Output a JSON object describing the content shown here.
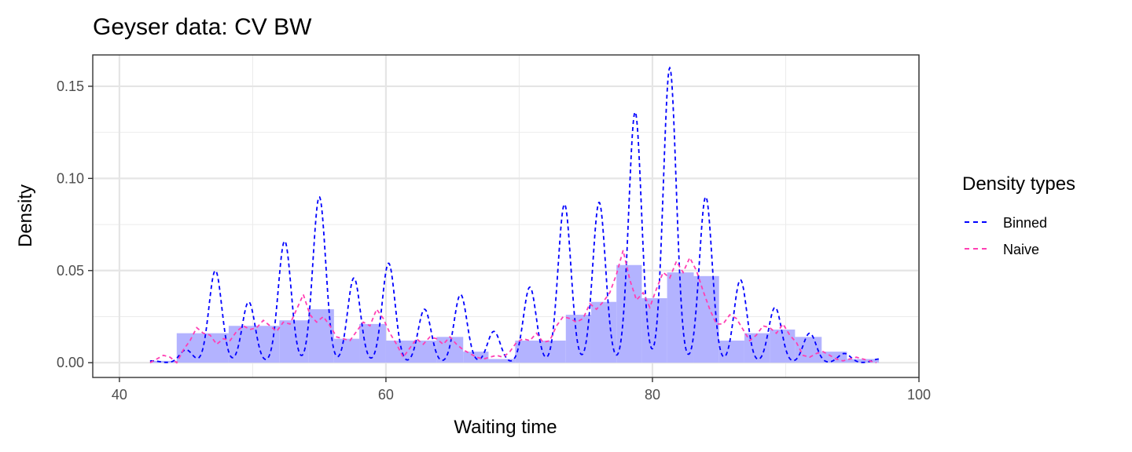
{
  "chart_data": {
    "type": "line",
    "title": "Geyser data: CV BW",
    "xlabel": "Waiting time",
    "ylabel": "Density",
    "xlim": [
      38,
      100
    ],
    "ylim": [
      -0.008,
      0.167
    ],
    "x_ticks": [
      40,
      60,
      80,
      100
    ],
    "x_tick_labels": [
      "40",
      "60",
      "80",
      "100"
    ],
    "y_ticks": [
      0,
      0.05,
      0.1,
      0.15
    ],
    "y_tick_labels": [
      "0.00",
      "0.05",
      "0.10",
      "0.15"
    ],
    "grid": true,
    "legend_position": "right",
    "legend": {
      "title": "Density types",
      "entries": [
        {
          "label": "Binned",
          "color": "#0000ff",
          "dash": "dashed"
        },
        {
          "label": "Naive",
          "color": "#ff3fb4",
          "dash": "dashed"
        }
      ]
    },
    "histogram": {
      "fill": "#b3b3ff",
      "bins": [
        {
          "x0": 42.3,
          "x1": 44.3,
          "y": 0.001
        },
        {
          "x0": 44.3,
          "x1": 48.2,
          "y": 0.016
        },
        {
          "x0": 48.2,
          "x1": 52.0,
          "y": 0.02
        },
        {
          "x0": 52.0,
          "x1": 54.2,
          "y": 0.023
        },
        {
          "x0": 54.2,
          "x1": 56.1,
          "y": 0.029
        },
        {
          "x0": 56.1,
          "x1": 58.0,
          "y": 0.013
        },
        {
          "x0": 58.0,
          "x1": 60.0,
          "y": 0.021
        },
        {
          "x0": 60.0,
          "x1": 63.8,
          "y": 0.012
        },
        {
          "x0": 63.8,
          "x1": 65.8,
          "y": 0.014
        },
        {
          "x0": 65.8,
          "x1": 67.7,
          "y": 0.006
        },
        {
          "x0": 67.7,
          "x1": 69.7,
          "y": 0.002
        },
        {
          "x0": 69.7,
          "x1": 73.5,
          "y": 0.012
        },
        {
          "x0": 73.5,
          "x1": 75.4,
          "y": 0.026
        },
        {
          "x0": 75.4,
          "x1": 77.3,
          "y": 0.033
        },
        {
          "x0": 77.3,
          "x1": 79.2,
          "y": 0.053
        },
        {
          "x0": 79.2,
          "x1": 81.1,
          "y": 0.035
        },
        {
          "x0": 81.1,
          "x1": 83.1,
          "y": 0.049
        },
        {
          "x0": 83.1,
          "x1": 85.0,
          "y": 0.047
        },
        {
          "x0": 85.0,
          "x1": 86.9,
          "y": 0.012
        },
        {
          "x0": 86.9,
          "x1": 88.8,
          "y": 0.016
        },
        {
          "x0": 88.8,
          "x1": 90.7,
          "y": 0.018
        },
        {
          "x0": 90.7,
          "x1": 92.7,
          "y": 0.014
        },
        {
          "x0": 92.7,
          "x1": 94.6,
          "y": 0.006
        },
        {
          "x0": 94.6,
          "x1": 97.0,
          "y": 0.002
        }
      ]
    },
    "series": [
      {
        "name": "Binned",
        "color": "#0000ff",
        "peaks": [
          {
            "x": 42.5,
            "h": 0.001
          },
          {
            "x": 45.0,
            "h": 0.007
          },
          {
            "x": 47.2,
            "h": 0.05
          },
          {
            "x": 49.7,
            "h": 0.033
          },
          {
            "x": 52.4,
            "h": 0.066
          },
          {
            "x": 55.0,
            "h": 0.09
          },
          {
            "x": 57.6,
            "h": 0.046
          },
          {
            "x": 60.2,
            "h": 0.054
          },
          {
            "x": 62.9,
            "h": 0.029
          },
          {
            "x": 65.6,
            "h": 0.037
          },
          {
            "x": 68.1,
            "h": 0.017
          },
          {
            "x": 70.8,
            "h": 0.041
          },
          {
            "x": 73.4,
            "h": 0.086
          },
          {
            "x": 76.0,
            "h": 0.087
          },
          {
            "x": 78.7,
            "h": 0.136
          },
          {
            "x": 81.3,
            "h": 0.16
          },
          {
            "x": 84.0,
            "h": 0.09
          },
          {
            "x": 86.6,
            "h": 0.045
          },
          {
            "x": 89.2,
            "h": 0.03
          },
          {
            "x": 91.8,
            "h": 0.016
          },
          {
            "x": 94.4,
            "h": 0.005
          },
          {
            "x": 97.0,
            "h": 0.002
          }
        ],
        "sigma": 0.48
      },
      {
        "name": "Naive",
        "color": "#ff3fb4",
        "points": [
          [
            42.3,
            0.0
          ],
          [
            42.8,
            0.002
          ],
          [
            43.3,
            0.004
          ],
          [
            43.8,
            0.003
          ],
          [
            44.3,
            0.0
          ],
          [
            44.8,
            0.007
          ],
          [
            45.3,
            0.012
          ],
          [
            45.8,
            0.019
          ],
          [
            46.3,
            0.016
          ],
          [
            46.8,
            0.015
          ],
          [
            47.3,
            0.01
          ],
          [
            47.8,
            0.013
          ],
          [
            48.3,
            0.012
          ],
          [
            48.8,
            0.017
          ],
          [
            49.3,
            0.02
          ],
          [
            49.8,
            0.018
          ],
          [
            50.3,
            0.019
          ],
          [
            50.8,
            0.023
          ],
          [
            51.3,
            0.02
          ],
          [
            51.8,
            0.017
          ],
          [
            52.3,
            0.022
          ],
          [
            52.8,
            0.021
          ],
          [
            53.3,
            0.029
          ],
          [
            53.8,
            0.037
          ],
          [
            54.3,
            0.026
          ],
          [
            54.8,
            0.022
          ],
          [
            55.3,
            0.025
          ],
          [
            55.8,
            0.02
          ],
          [
            56.3,
            0.014
          ],
          [
            56.8,
            0.013
          ],
          [
            57.3,
            0.012
          ],
          [
            57.8,
            0.017
          ],
          [
            58.3,
            0.022
          ],
          [
            58.8,
            0.02
          ],
          [
            59.3,
            0.029
          ],
          [
            59.8,
            0.024
          ],
          [
            60.3,
            0.016
          ],
          [
            60.8,
            0.01
          ],
          [
            61.3,
            0.003
          ],
          [
            61.8,
            0.008
          ],
          [
            62.3,
            0.013
          ],
          [
            62.8,
            0.01
          ],
          [
            63.3,
            0.014
          ],
          [
            63.8,
            0.013
          ],
          [
            64.3,
            0.01
          ],
          [
            64.8,
            0.014
          ],
          [
            65.3,
            0.01
          ],
          [
            65.8,
            0.007
          ],
          [
            66.3,
            0.005
          ],
          [
            66.8,
            0.003
          ],
          [
            67.3,
            0.002
          ],
          [
            67.8,
            0.003
          ],
          [
            68.3,
            0.004
          ],
          [
            68.8,
            0.003
          ],
          [
            69.3,
            0.006
          ],
          [
            69.8,
            0.011
          ],
          [
            70.3,
            0.013
          ],
          [
            70.8,
            0.012
          ],
          [
            71.3,
            0.016
          ],
          [
            71.8,
            0.011
          ],
          [
            72.3,
            0.012
          ],
          [
            72.8,
            0.02
          ],
          [
            73.3,
            0.025
          ],
          [
            73.8,
            0.024
          ],
          [
            74.3,
            0.022
          ],
          [
            74.8,
            0.024
          ],
          [
            75.3,
            0.032
          ],
          [
            75.8,
            0.029
          ],
          [
            76.3,
            0.033
          ],
          [
            76.8,
            0.038
          ],
          [
            77.3,
            0.048
          ],
          [
            77.8,
            0.061
          ],
          [
            78.3,
            0.045
          ],
          [
            78.8,
            0.034
          ],
          [
            79.3,
            0.038
          ],
          [
            79.8,
            0.03
          ],
          [
            80.3,
            0.04
          ],
          [
            80.8,
            0.049
          ],
          [
            81.3,
            0.046
          ],
          [
            81.8,
            0.055
          ],
          [
            82.3,
            0.049
          ],
          [
            82.8,
            0.057
          ],
          [
            83.3,
            0.05
          ],
          [
            83.8,
            0.039
          ],
          [
            84.3,
            0.029
          ],
          [
            84.8,
            0.021
          ],
          [
            85.3,
            0.021
          ],
          [
            85.8,
            0.026
          ],
          [
            86.3,
            0.024
          ],
          [
            86.8,
            0.018
          ],
          [
            87.3,
            0.012
          ],
          [
            87.8,
            0.015
          ],
          [
            88.3,
            0.02
          ],
          [
            88.8,
            0.019
          ],
          [
            89.3,
            0.016
          ],
          [
            89.8,
            0.021
          ],
          [
            90.3,
            0.015
          ],
          [
            90.8,
            0.011
          ],
          [
            91.3,
            0.004
          ],
          [
            91.8,
            0.003
          ],
          [
            92.3,
            0.005
          ],
          [
            92.8,
            0.006
          ],
          [
            93.3,
            0.004
          ],
          [
            93.8,
            0.002
          ],
          [
            94.3,
            0.001
          ],
          [
            94.8,
            0.002
          ],
          [
            95.3,
            0.003
          ],
          [
            95.8,
            0.002
          ],
          [
            96.3,
            0.001
          ],
          [
            96.8,
            0.0
          ]
        ]
      }
    ]
  }
}
